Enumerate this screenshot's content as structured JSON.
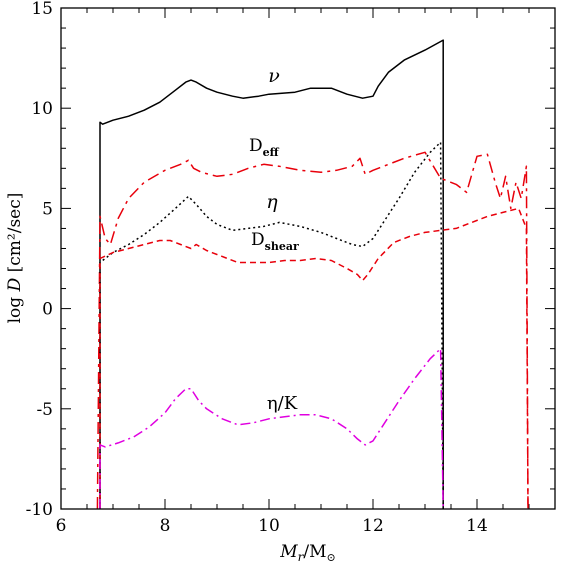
{
  "chart_data": {
    "type": "line",
    "xlabel_main": "M",
    "xlabel_sub": "r",
    "xlabel_mid": "/M",
    "xlabel_sun": "⊙",
    "ylabel_prefix": "log ",
    "ylabel_var": "D",
    "ylabel_units": "  [cm²/sec]",
    "xlim": [
      6,
      15.5
    ],
    "ylim": [
      -10,
      15
    ],
    "xticks": [
      6,
      8,
      10,
      12,
      14
    ],
    "yticks": [
      -10,
      -5,
      0,
      5,
      10,
      15
    ],
    "grid": false,
    "series": [
      {
        "key": "nu",
        "color": "#000000",
        "dash": "",
        "label_main": "ν",
        "label_sub": "",
        "points": [
          [
            6.75,
            -10
          ],
          [
            6.75,
            9.3
          ],
          [
            6.8,
            9.2
          ],
          [
            7.0,
            9.4
          ],
          [
            7.3,
            9.6
          ],
          [
            7.6,
            9.9
          ],
          [
            7.9,
            10.3
          ],
          [
            8.2,
            10.9
          ],
          [
            8.4,
            11.3
          ],
          [
            8.5,
            11.4
          ],
          [
            8.6,
            11.3
          ],
          [
            8.8,
            11.0
          ],
          [
            9.0,
            10.8
          ],
          [
            9.3,
            10.6
          ],
          [
            9.5,
            10.5
          ],
          [
            9.8,
            10.6
          ],
          [
            10.0,
            10.7
          ],
          [
            10.5,
            10.8
          ],
          [
            10.8,
            11.0
          ],
          [
            11.2,
            11.0
          ],
          [
            11.5,
            10.7
          ],
          [
            11.8,
            10.5
          ],
          [
            12.0,
            10.6
          ],
          [
            12.1,
            11.1
          ],
          [
            12.3,
            11.8
          ],
          [
            12.6,
            12.4
          ],
          [
            13.0,
            12.9
          ],
          [
            13.35,
            13.4
          ],
          [
            13.35,
            -10
          ]
        ]
      },
      {
        "key": "deff",
        "color": "#e8000b",
        "dash": "12 5 3 5",
        "label_main": "D",
        "label_sub": "eff",
        "points": [
          [
            6.7,
            -10
          ],
          [
            6.75,
            4.6
          ],
          [
            6.85,
            3.5
          ],
          [
            6.95,
            3.2
          ],
          [
            7.1,
            4.5
          ],
          [
            7.3,
            5.5
          ],
          [
            7.6,
            6.3
          ],
          [
            8.0,
            6.9
          ],
          [
            8.3,
            7.2
          ],
          [
            8.45,
            7.4
          ],
          [
            8.55,
            7.0
          ],
          [
            8.7,
            6.8
          ],
          [
            9.0,
            6.6
          ],
          [
            9.3,
            6.7
          ],
          [
            9.6,
            7.0
          ],
          [
            9.9,
            7.2
          ],
          [
            10.2,
            7.1
          ],
          [
            10.6,
            6.9
          ],
          [
            11.0,
            6.8
          ],
          [
            11.3,
            6.9
          ],
          [
            11.6,
            7.1
          ],
          [
            11.75,
            7.5
          ],
          [
            11.85,
            6.7
          ],
          [
            12.0,
            6.9
          ],
          [
            12.3,
            7.2
          ],
          [
            12.6,
            7.5
          ],
          [
            13.0,
            7.8
          ],
          [
            13.3,
            6.5
          ],
          [
            13.6,
            6.2
          ],
          [
            13.8,
            5.8
          ],
          [
            14.0,
            7.6
          ],
          [
            14.2,
            7.7
          ],
          [
            14.35,
            6.3
          ],
          [
            14.45,
            5.5
          ],
          [
            14.55,
            6.6
          ],
          [
            14.65,
            5.0
          ],
          [
            14.75,
            6.3
          ],
          [
            14.85,
            5.5
          ],
          [
            14.95,
            7.1
          ],
          [
            14.98,
            -10
          ]
        ]
      },
      {
        "key": "eta",
        "color": "#000000",
        "dash": "2 3",
        "label_main": "η",
        "label_sub": "",
        "points": [
          [
            6.75,
            -10
          ],
          [
            6.75,
            2.3
          ],
          [
            7.0,
            2.8
          ],
          [
            7.3,
            3.2
          ],
          [
            7.6,
            3.7
          ],
          [
            7.9,
            4.3
          ],
          [
            8.2,
            5.0
          ],
          [
            8.45,
            5.6
          ],
          [
            8.6,
            5.2
          ],
          [
            8.8,
            4.6
          ],
          [
            9.0,
            4.2
          ],
          [
            9.3,
            3.9
          ],
          [
            9.6,
            4.0
          ],
          [
            9.9,
            4.1
          ],
          [
            10.2,
            4.3
          ],
          [
            10.6,
            4.1
          ],
          [
            11.0,
            3.8
          ],
          [
            11.3,
            3.5
          ],
          [
            11.6,
            3.2
          ],
          [
            11.8,
            3.1
          ],
          [
            12.0,
            3.5
          ],
          [
            12.2,
            4.3
          ],
          [
            12.5,
            5.5
          ],
          [
            12.8,
            6.8
          ],
          [
            13.1,
            7.8
          ],
          [
            13.3,
            8.3
          ],
          [
            13.35,
            -10
          ]
        ]
      },
      {
        "key": "dshear",
        "color": "#e8000b",
        "dash": "6 4",
        "label_main": "D",
        "label_sub": "shear",
        "points": [
          [
            6.75,
            -10
          ],
          [
            6.75,
            2.5
          ],
          [
            7.0,
            2.8
          ],
          [
            7.3,
            3.0
          ],
          [
            7.6,
            3.2
          ],
          [
            7.9,
            3.4
          ],
          [
            8.1,
            3.4
          ],
          [
            8.3,
            3.2
          ],
          [
            8.5,
            3.0
          ],
          [
            8.6,
            3.2
          ],
          [
            8.8,
            2.9
          ],
          [
            9.0,
            2.7
          ],
          [
            9.2,
            2.5
          ],
          [
            9.4,
            2.3
          ],
          [
            9.6,
            2.3
          ],
          [
            9.8,
            2.3
          ],
          [
            10.0,
            2.3
          ],
          [
            10.3,
            2.4
          ],
          [
            10.6,
            2.4
          ],
          [
            10.9,
            2.5
          ],
          [
            11.2,
            2.4
          ],
          [
            11.5,
            2.0
          ],
          [
            11.7,
            1.7
          ],
          [
            11.8,
            1.4
          ],
          [
            11.9,
            1.7
          ],
          [
            12.1,
            2.5
          ],
          [
            12.4,
            3.3
          ],
          [
            12.7,
            3.6
          ],
          [
            13.0,
            3.8
          ],
          [
            13.3,
            3.9
          ],
          [
            13.6,
            4.0
          ],
          [
            13.9,
            4.3
          ],
          [
            14.2,
            4.6
          ],
          [
            14.5,
            4.8
          ],
          [
            14.8,
            5.0
          ],
          [
            14.95,
            4.0
          ],
          [
            14.98,
            -10
          ]
        ]
      },
      {
        "key": "etak",
        "color": "#e000e0",
        "dash": "10 4 2 4",
        "label_main": "η/K",
        "label_sub": "",
        "points": [
          [
            6.75,
            -10
          ],
          [
            6.75,
            -6.8
          ],
          [
            6.85,
            -6.9
          ],
          [
            7.1,
            -6.7
          ],
          [
            7.4,
            -6.4
          ],
          [
            7.7,
            -5.9
          ],
          [
            8.0,
            -5.2
          ],
          [
            8.2,
            -4.5
          ],
          [
            8.4,
            -4.0
          ],
          [
            8.5,
            -4.0
          ],
          [
            8.65,
            -4.6
          ],
          [
            8.8,
            -5.0
          ],
          [
            9.1,
            -5.5
          ],
          [
            9.4,
            -5.8
          ],
          [
            9.7,
            -5.7
          ],
          [
            10.0,
            -5.5
          ],
          [
            10.3,
            -5.4
          ],
          [
            10.6,
            -5.3
          ],
          [
            10.9,
            -5.3
          ],
          [
            11.2,
            -5.5
          ],
          [
            11.5,
            -6.0
          ],
          [
            11.7,
            -6.5
          ],
          [
            11.85,
            -6.8
          ],
          [
            12.0,
            -6.6
          ],
          [
            12.2,
            -5.8
          ],
          [
            12.5,
            -4.6
          ],
          [
            12.8,
            -3.5
          ],
          [
            13.1,
            -2.5
          ],
          [
            13.3,
            -2.0
          ],
          [
            13.35,
            -10
          ]
        ]
      }
    ]
  }
}
